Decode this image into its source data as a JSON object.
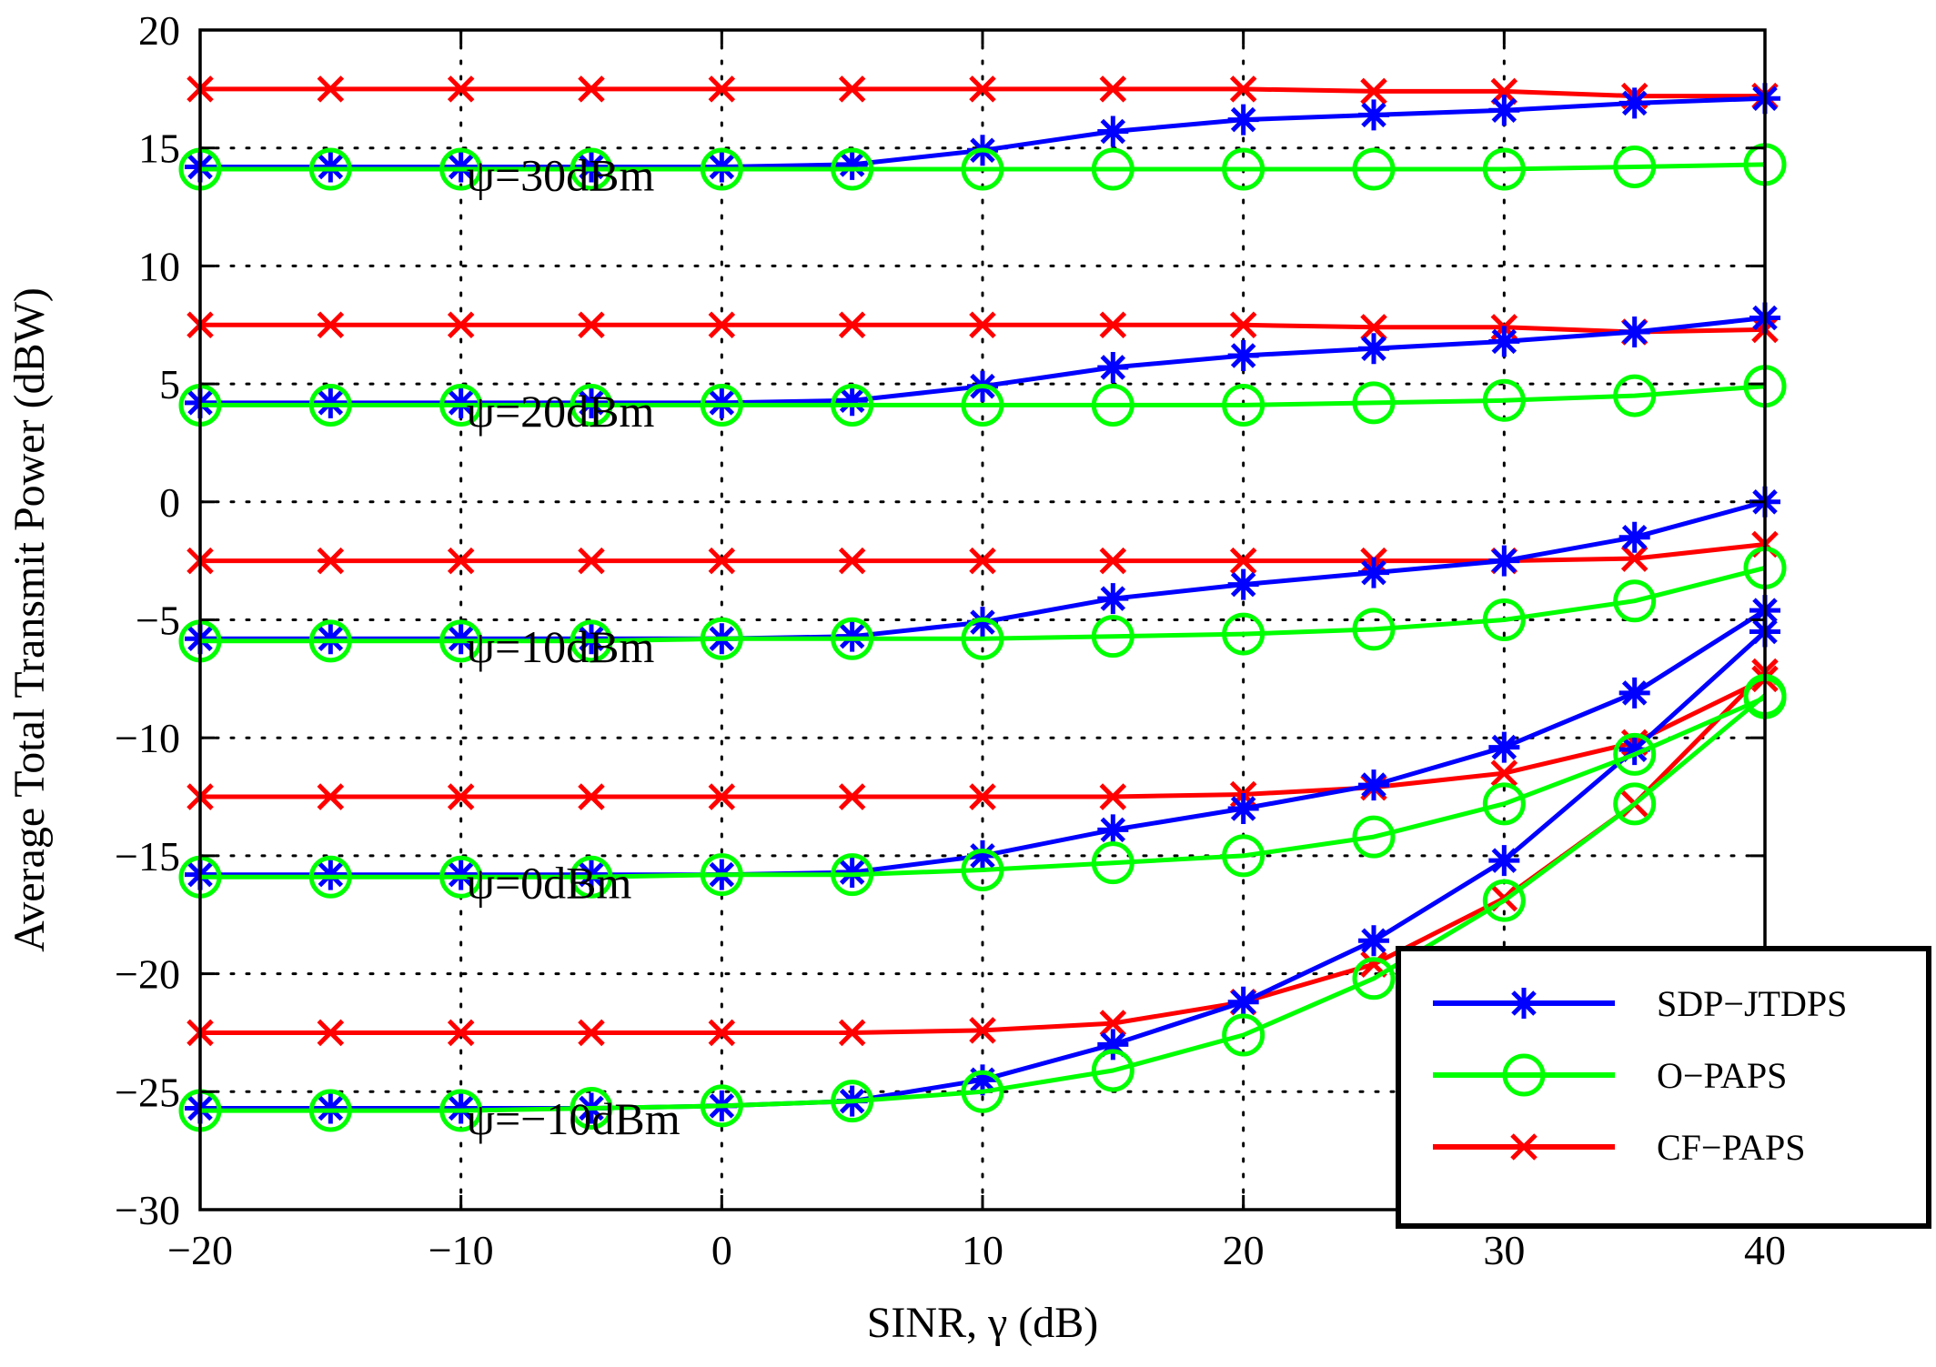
{
  "chart_data": {
    "type": "line",
    "title": "",
    "xlabel": "SINR, γ (dB)",
    "ylabel": "Average Total Transmit Power (dBW)",
    "xlim": [
      -20,
      40
    ],
    "ylim": [
      -30,
      20
    ],
    "xticks": [
      -20,
      -10,
      0,
      10,
      20,
      30,
      40
    ],
    "yticks": [
      -30,
      -25,
      -20,
      -15,
      -10,
      -5,
      0,
      5,
      10,
      15,
      20
    ],
    "xtick_labels": [
      "−20",
      "−10",
      "0",
      "10",
      "20",
      "30",
      "40"
    ],
    "ytick_labels": [
      "−30",
      "−25",
      "−20",
      "−15",
      "−10",
      "−5",
      "0",
      "5",
      "10",
      "15",
      "20"
    ],
    "grid": true,
    "legend_position": "bottom-right",
    "x": [
      -20,
      -15,
      -10,
      -5,
      0,
      5,
      10,
      15,
      20,
      25,
      30,
      35,
      40
    ],
    "series": [
      {
        "name": "SDP−JTDPS",
        "color": "#0000ff",
        "marker": "asterisk",
        "group": "ψ=30dBm",
        "values": [
          14.2,
          14.2,
          14.2,
          14.2,
          14.2,
          14.3,
          14.9,
          15.7,
          16.2,
          16.4,
          16.6,
          16.9,
          17.1
        ]
      },
      {
        "name": "O−PAPS",
        "color": "#00ff00",
        "marker": "circle",
        "group": "ψ=30dBm",
        "values": [
          14.1,
          14.1,
          14.1,
          14.1,
          14.1,
          14.1,
          14.1,
          14.1,
          14.1,
          14.1,
          14.1,
          14.2,
          14.3
        ]
      },
      {
        "name": "CF−PAPS",
        "color": "#ff0000",
        "marker": "x",
        "group": "ψ=30dBm",
        "values": [
          17.5,
          17.5,
          17.5,
          17.5,
          17.5,
          17.5,
          17.5,
          17.5,
          17.5,
          17.4,
          17.4,
          17.2,
          17.2
        ]
      },
      {
        "name": "SDP−JTDPS",
        "color": "#0000ff",
        "marker": "asterisk",
        "group": "ψ=20dBm",
        "values": [
          4.2,
          4.2,
          4.2,
          4.2,
          4.2,
          4.3,
          4.9,
          5.7,
          6.2,
          6.5,
          6.8,
          7.2,
          7.8
        ]
      },
      {
        "name": "O−PAPS",
        "color": "#00ff00",
        "marker": "circle",
        "group": "ψ=20dBm",
        "values": [
          4.1,
          4.1,
          4.1,
          4.1,
          4.1,
          4.1,
          4.1,
          4.1,
          4.1,
          4.2,
          4.3,
          4.5,
          4.9
        ]
      },
      {
        "name": "CF−PAPS",
        "color": "#ff0000",
        "marker": "x",
        "group": "ψ=20dBm",
        "values": [
          7.5,
          7.5,
          7.5,
          7.5,
          7.5,
          7.5,
          7.5,
          7.5,
          7.5,
          7.4,
          7.4,
          7.2,
          7.3
        ]
      },
      {
        "name": "SDP−JTDPS",
        "color": "#0000ff",
        "marker": "asterisk",
        "group": "ψ=10dBm",
        "values": [
          -5.8,
          -5.8,
          -5.8,
          -5.8,
          -5.8,
          -5.7,
          -5.1,
          -4.1,
          -3.5,
          -3.0,
          -2.5,
          -1.5,
          0.0
        ]
      },
      {
        "name": "O−PAPS",
        "color": "#00ff00",
        "marker": "circle",
        "group": "ψ=10dBm",
        "values": [
          -5.9,
          -5.9,
          -5.9,
          -5.9,
          -5.8,
          -5.8,
          -5.8,
          -5.7,
          -5.6,
          -5.4,
          -5.0,
          -4.2,
          -2.8
        ]
      },
      {
        "name": "CF−PAPS",
        "color": "#ff0000",
        "marker": "x",
        "group": "ψ=10dBm",
        "values": [
          -2.5,
          -2.5,
          -2.5,
          -2.5,
          -2.5,
          -2.5,
          -2.5,
          -2.5,
          -2.5,
          -2.5,
          -2.5,
          -2.4,
          -1.8
        ]
      },
      {
        "name": "SDP−JTDPS",
        "color": "#0000ff",
        "marker": "asterisk",
        "group": "ψ=0dBm",
        "values": [
          -15.8,
          -15.8,
          -15.8,
          -15.8,
          -15.8,
          -15.7,
          -15.0,
          -13.9,
          -13.0,
          -12.0,
          -10.4,
          -8.1,
          -4.6
        ]
      },
      {
        "name": "O−PAPS",
        "color": "#00ff00",
        "marker": "circle",
        "group": "ψ=0dBm",
        "values": [
          -15.9,
          -15.9,
          -15.9,
          -15.9,
          -15.8,
          -15.8,
          -15.6,
          -15.3,
          -15.0,
          -14.2,
          -12.8,
          -10.7,
          -8.3
        ]
      },
      {
        "name": "CF−PAPS",
        "color": "#ff0000",
        "marker": "x",
        "group": "ψ=0dBm",
        "values": [
          -12.5,
          -12.5,
          -12.5,
          -12.5,
          -12.5,
          -12.5,
          -12.5,
          -12.5,
          -12.4,
          -12.1,
          -11.5,
          -10.2,
          -7.5
        ]
      },
      {
        "name": "SDP−JTDPS",
        "color": "#0000ff",
        "marker": "asterisk",
        "group": "ψ=−10dBm",
        "values": [
          -25.7,
          -25.7,
          -25.7,
          -25.7,
          -25.6,
          -25.4,
          -24.5,
          -23.0,
          -21.2,
          -18.6,
          -15.2,
          -10.5,
          -5.5
        ]
      },
      {
        "name": "O−PAPS",
        "color": "#00ff00",
        "marker": "circle",
        "group": "ψ=−10dBm",
        "values": [
          -25.8,
          -25.8,
          -25.8,
          -25.7,
          -25.6,
          -25.4,
          -25.0,
          -24.1,
          -22.6,
          -20.2,
          -16.9,
          -12.8,
          -8.2
        ]
      },
      {
        "name": "CF−PAPS",
        "color": "#ff0000",
        "marker": "x",
        "group": "ψ=−10dBm",
        "values": [
          -22.5,
          -22.5,
          -22.5,
          -22.5,
          -22.5,
          -22.5,
          -22.4,
          -22.1,
          -21.2,
          -19.6,
          -16.8,
          -12.8,
          -7.2
        ]
      }
    ],
    "annotations": [
      {
        "text": "ψ=30dBm",
        "x": -10,
        "y": 13.2
      },
      {
        "text": "ψ=20dBm",
        "x": -10,
        "y": 3.2
      },
      {
        "text": "ψ=10dBm",
        "x": -10,
        "y": -6.8
      },
      {
        "text": "ψ=0dBm",
        "x": -10,
        "y": -16.8
      },
      {
        "text": "ψ=−10dBm",
        "x": -10,
        "y": -26.8
      }
    ],
    "legend": [
      {
        "label": "SDP−JTDPS",
        "color": "#0000ff",
        "marker": "asterisk"
      },
      {
        "label": "O−PAPS",
        "color": "#00ff00",
        "marker": "circle"
      },
      {
        "label": "CF−PAPS",
        "color": "#ff0000",
        "marker": "x"
      }
    ]
  }
}
